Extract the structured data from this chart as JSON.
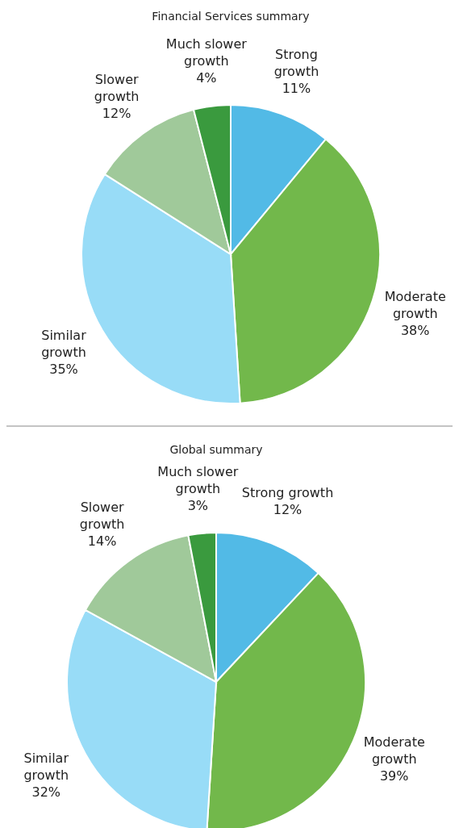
{
  "chart_data": [
    {
      "type": "pie",
      "title": "Financial Services summary",
      "categories": [
        "Strong growth",
        "Moderate growth",
        "Similar growth",
        "Slower growth",
        "Much slower growth"
      ],
      "values": [
        11,
        38,
        35,
        12,
        4
      ],
      "value_labels": [
        "11%",
        "38%",
        "35%",
        "12%",
        "4%"
      ],
      "colors": [
        "#52bae6",
        "#72b84b",
        "#98dcf7",
        "#a0c99a",
        "#3a9a3e"
      ]
    },
    {
      "type": "pie",
      "title": "Global summary",
      "categories": [
        "Strong growth",
        "Moderate growth",
        "Similar growth",
        "Slower growth",
        "Much slower growth"
      ],
      "values": [
        12,
        39,
        32,
        14,
        3
      ],
      "value_labels": [
        "12%",
        "39%",
        "32%",
        "14%",
        "3%"
      ],
      "colors": [
        "#52bae6",
        "#72b84b",
        "#98dcf7",
        "#a0c99a",
        "#3a9a3e"
      ]
    }
  ]
}
